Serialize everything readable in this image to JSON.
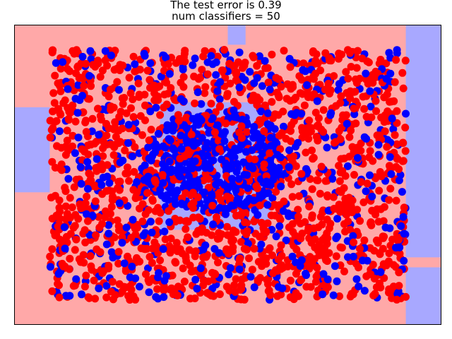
{
  "chart_data": {
    "type": "scatter",
    "title_line1": "The test error is 0.39",
    "title_line2": "num classifiers = 50",
    "xlabel": "",
    "ylabel": "",
    "xlim": [
      -0.1,
      1.1
    ],
    "ylim": [
      -0.1,
      1.1
    ],
    "ticks_visible": false,
    "grid": false,
    "legend": "none",
    "colors": {
      "class_a_point": "#ff0000",
      "class_b_point": "#0000ff",
      "class_a_region": "#ffa8a8",
      "class_b_region": "#a8a8ff",
      "frame": "#000000"
    },
    "decision_regions": [
      {
        "class": "a",
        "x": [
          -0.1,
          1.1
        ],
        "y": [
          -0.1,
          1.1
        ]
      },
      {
        "class": "b",
        "x": [
          -0.1,
          0.0
        ],
        "y": [
          0.43,
          0.77
        ]
      },
      {
        "class": "b",
        "x": [
          0.5,
          0.55
        ],
        "y": [
          1.02,
          1.1
        ]
      },
      {
        "class": "b",
        "x": [
          1.0,
          1.1
        ],
        "y": [
          0.17,
          1.1
        ]
      },
      {
        "class": "b",
        "x": [
          1.0,
          1.1
        ],
        "y": [
          -0.1,
          0.13
        ]
      },
      {
        "class": "b",
        "x": [
          0.31,
          0.62
        ],
        "y": [
          0.28,
          0.79
        ]
      }
    ],
    "series": [
      {
        "class": "a",
        "count": 1500
      },
      {
        "class": "b",
        "count": 900
      }
    ],
    "point_range": {
      "x": [
        0.0,
        1.0
      ],
      "y": [
        0.0,
        1.0
      ]
    },
    "class_b_center": [
      0.46,
      0.55
    ],
    "seed": 7
  }
}
